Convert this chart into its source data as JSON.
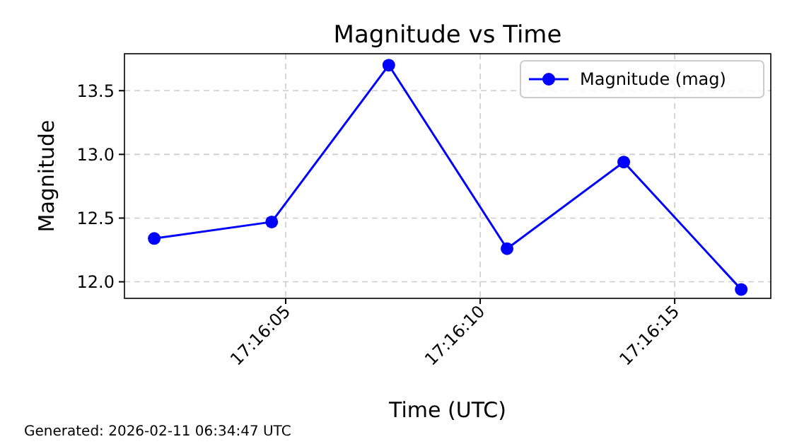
{
  "chart_data": {
    "type": "line",
    "title": "Magnitude vs Time",
    "xlabel": "Time (UTC)",
    "ylabel": "Magnitude",
    "x": [
      17.2671167,
      17.2679556,
      17.2687917,
      17.2696361,
      17.2704694,
      17.2713083
    ],
    "series": [
      {
        "name": "Magnitude (mag)",
        "color": "#0000ff",
        "values": [
          12.34,
          12.47,
          13.7,
          12.26,
          12.94,
          11.94
        ]
      }
    ],
    "xlim": [
      17.2669042,
      17.2715194
    ],
    "xticks": [
      {
        "value": 17.2680556,
        "label": "17:16:05"
      },
      {
        "value": 17.2694444,
        "label": "17:16:10"
      },
      {
        "value": 17.2708333,
        "label": "17:16:15"
      }
    ],
    "ylim": [
      11.87,
      13.79
    ],
    "yticks": [
      {
        "value": 12,
        "label": "12.0"
      },
      {
        "value": 12.5,
        "label": "12.5"
      },
      {
        "value": 13,
        "label": "13.0"
      },
      {
        "value": 13.5,
        "label": "13.5"
      }
    ],
    "grid": true,
    "legend": "top right",
    "marker": "circle",
    "line_style": "solid",
    "annotations": [
      "Generated: 2026-02-11 06:34:47 UTC"
    ]
  }
}
